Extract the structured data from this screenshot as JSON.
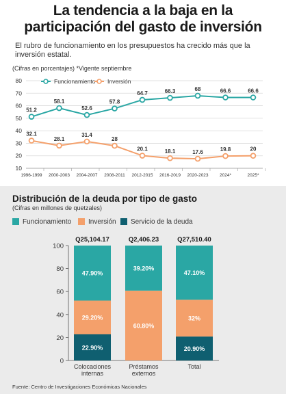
{
  "header": {
    "title_line1": "La tendencia a la baja en la",
    "title_line2": "participación del gasto de inversión",
    "subtitle": "El rubro de funcionamiento en los presupuestos ha crecido más que la inversión estatal.",
    "units": "(Cifras en porcentajes)  *Vigente septiembre"
  },
  "colors": {
    "teal": "#2aa7a4",
    "orange": "#f4a06b",
    "dark_teal": "#0f5f70",
    "bottom_bg": "#ebebeb"
  },
  "chart_data": [
    {
      "type": "line",
      "title": "La tendencia a la baja en la participación del gasto de inversión",
      "ylabel": "(Cifras en porcentajes)",
      "ylim": [
        10,
        80
      ],
      "yticks": [
        10,
        20,
        30,
        40,
        50,
        60,
        70,
        80
      ],
      "grid": true,
      "legend_position": "top-center",
      "categories": [
        "1996-1999",
        "2000-2003",
        "2004-2007",
        "2008-2011",
        "2012-2015",
        "2016-2019",
        "2020-2023",
        "2024*",
        "2025*"
      ],
      "series": [
        {
          "name": "Funcionamiento",
          "color": "#2aa7a4",
          "values": [
            51.2,
            58.1,
            52.6,
            57.8,
            64.7,
            66.3,
            68,
            66.6,
            66.6
          ],
          "labels": [
            "51.2",
            "58.1",
            "52.6",
            "57.8",
            "64.7",
            "66.3",
            "68",
            "66.6",
            "66.6"
          ]
        },
        {
          "name": "Inversión",
          "color": "#f4a06b",
          "values": [
            32.1,
            28.1,
            31.4,
            28,
            20.1,
            18.1,
            17.6,
            19.8,
            20
          ],
          "labels": [
            "32.1",
            "28.1",
            "31.4",
            "28",
            "20.1",
            "18.1",
            "17.6",
            "19.8",
            "20"
          ]
        }
      ]
    },
    {
      "type": "bar",
      "stacked": true,
      "title": "Distribución de la deuda por tipo de gasto",
      "subtitle": "(Cifras en millones de quetzales)",
      "ylim": [
        0,
        100
      ],
      "yticks": [
        0,
        20,
        40,
        60,
        80,
        100
      ],
      "legend_position": "top-left",
      "categories": [
        "Colocaciones internas",
        "Préstamos externos",
        "Total"
      ],
      "category_lines": [
        [
          "Colocaciones",
          "internas"
        ],
        [
          "Préstamos",
          "externos"
        ],
        [
          "Total"
        ]
      ],
      "totals": [
        "Q25,104.17",
        "Q2,406.23",
        "Q27,510.40"
      ],
      "series": [
        {
          "name": "Funcionamiento",
          "color": "#2aa7a4",
          "values": [
            47.9,
            39.2,
            47.1
          ],
          "labels": [
            "47.90%",
            "39.20%",
            "47.10%"
          ]
        },
        {
          "name": "Inversión",
          "color": "#f4a06b",
          "values": [
            29.2,
            60.8,
            32
          ],
          "labels": [
            "29.20%",
            "60.80%",
            "32%"
          ]
        },
        {
          "name": "Servicio de la deuda",
          "color": "#0f5f70",
          "values": [
            22.9,
            0,
            20.9
          ],
          "labels": [
            "22.90%",
            "",
            "20.90%"
          ]
        }
      ]
    }
  ],
  "footer": {
    "source": "Fuente: Centro de Investigaciones Económicas Nacionales"
  }
}
